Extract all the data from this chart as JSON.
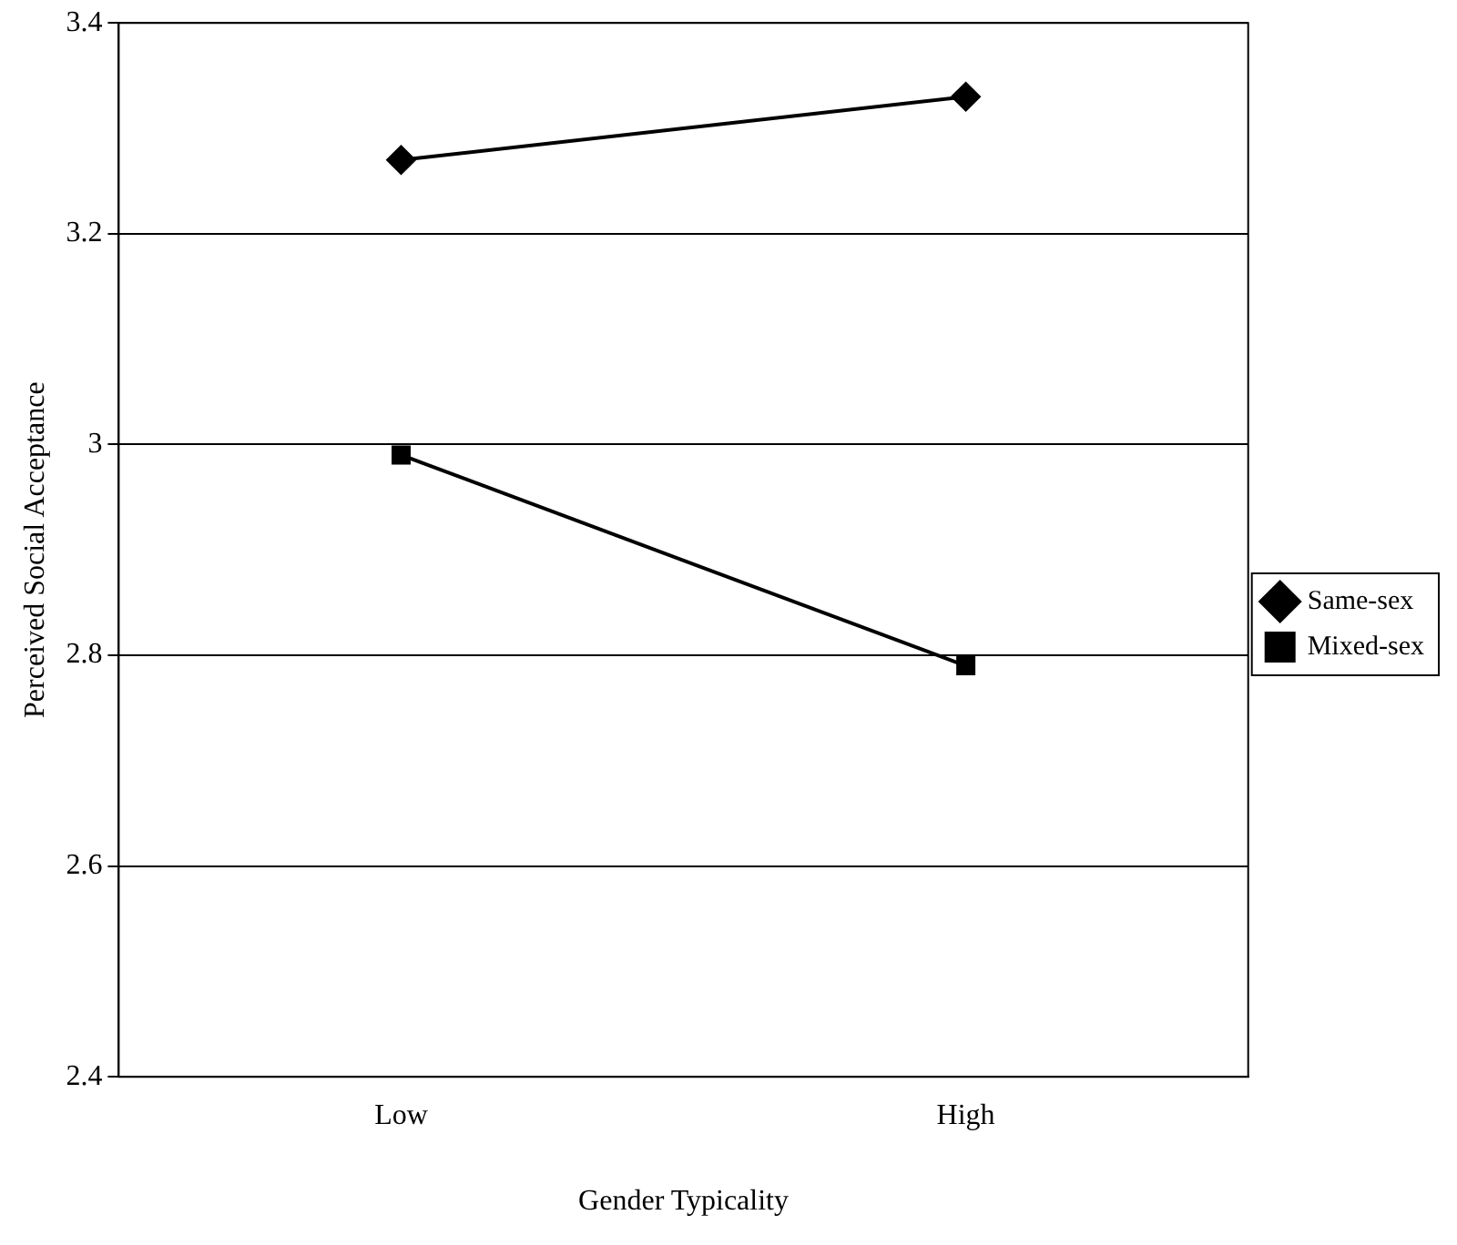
{
  "chart_data": {
    "type": "line",
    "xlabel": "Gender Typicality",
    "ylabel": "Perceived Social Acceptance",
    "categories": [
      "Low",
      "High"
    ],
    "series": [
      {
        "name": "Same-sex",
        "color": "#000000",
        "marker": "diamond",
        "values": [
          3.27,
          3.33
        ]
      },
      {
        "name": "Mixed-sex",
        "color": "#000000",
        "marker": "square",
        "values": [
          2.99,
          2.79
        ]
      }
    ],
    "ylim": [
      2.4,
      3.4
    ],
    "yticks": [
      2.4,
      2.6,
      2.8,
      3,
      3.2,
      3.4
    ],
    "grid": "y",
    "legend": "right",
    "line_style": "solid"
  }
}
